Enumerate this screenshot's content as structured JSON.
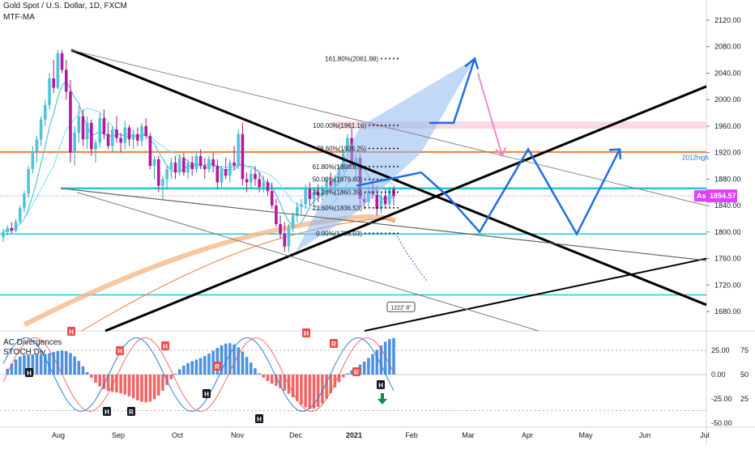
{
  "header": {
    "symbol_line": "Gold Spot / U.S. Dollar, 1D, FXCM",
    "indicator": "MTF-MA"
  },
  "sub_panel": {
    "indicator1": "AC Divergences",
    "indicator2": "STOCH Div",
    "right_ticks": [
      "25.00",
      "0.00",
      "-25.00",
      "-50.00"
    ],
    "right_ticks_b": [
      "75",
      "50",
      "25"
    ],
    "divergence_labels": [
      "H",
      "H",
      "H",
      "H",
      "R",
      "H",
      "H",
      "R",
      "H",
      "H",
      "R",
      "R",
      "H"
    ]
  },
  "chart_data": {
    "type": "candlestick",
    "price_axis": {
      "ylim": [
        1650,
        2140
      ],
      "ticks": [
        "2120.00",
        "2080.00",
        "2040.00",
        "2000.00",
        "1960.00",
        "1920.00",
        "1880.00",
        "1840.00",
        "1800.00",
        "1760.00",
        "1720.00",
        "1680.00"
      ]
    },
    "time_axis": {
      "labels": [
        "Aug",
        "Sep",
        "Oct",
        "Nov",
        "Dec",
        "2021",
        "Feb",
        "Mar",
        "Apr",
        "May",
        "Jun",
        "Jul"
      ]
    },
    "last_price": {
      "label": "Ask",
      "value": "1854.57"
    },
    "fib_levels": [
      {
        "ratio": "161.80%",
        "price": 2061.98,
        "label": "161.80%(2061.98)"
      },
      {
        "ratio": "100.00%",
        "price": 1961.16,
        "label": "100.00%(1961.16)"
      },
      {
        "ratio": "78.60%",
        "price": 1926.25,
        "label": "78.60%(1926.25)"
      },
      {
        "ratio": "61.80%",
        "price": 1898.87,
        "label": "61.80%(1898.87)"
      },
      {
        "ratio": "50.00%",
        "price": 1879.6,
        "label": "50.00%(1879.60)"
      },
      {
        "ratio": "38.20%",
        "price": 1860.35,
        "label": "38.20%(1860.35)"
      },
      {
        "ratio": "23.60%",
        "price": 1836.53,
        "label": "23.60%(1836.53)"
      },
      {
        "ratio": "0.00%",
        "price": 1798.03,
        "label": "0.00%(1798.03)"
      }
    ],
    "annotations": [
      "2012high",
      "1222' 8\""
    ],
    "horizontal_levels": [
      1921,
      1866,
      1797,
      1705
    ],
    "candles": [
      [
        1792,
        1805,
        1785,
        1800
      ],
      [
        1800,
        1810,
        1795,
        1806
      ],
      [
        1806,
        1815,
        1798,
        1802
      ],
      [
        1802,
        1820,
        1800,
        1816
      ],
      [
        1816,
        1840,
        1812,
        1836
      ],
      [
        1836,
        1862,
        1830,
        1858
      ],
      [
        1858,
        1900,
        1852,
        1895
      ],
      [
        1895,
        1930,
        1888,
        1922
      ],
      [
        1922,
        1945,
        1905,
        1940
      ],
      [
        1940,
        1975,
        1930,
        1970
      ],
      [
        1970,
        2000,
        1960,
        1992
      ],
      [
        1992,
        2040,
        1985,
        2032
      ],
      [
        2032,
        2060,
        2010,
        2018
      ],
      [
        2018,
        2075,
        2015,
        2070
      ],
      [
        2070,
        2075,
        2040,
        2045
      ],
      [
        2045,
        2060,
        2000,
        2012
      ],
      [
        2012,
        2030,
        1905,
        1920
      ],
      [
        1920,
        1960,
        1900,
        1950
      ],
      [
        1950,
        1990,
        1935,
        1975
      ],
      [
        1975,
        1985,
        1930,
        1940
      ],
      [
        1940,
        1975,
        1925,
        1965
      ],
      [
        1965,
        1970,
        1915,
        1925
      ],
      [
        1925,
        1940,
        1905,
        1935
      ],
      [
        1935,
        1980,
        1928,
        1972
      ],
      [
        1972,
        1985,
        1940,
        1948
      ],
      [
        1948,
        1965,
        1925,
        1930
      ],
      [
        1930,
        1960,
        1922,
        1955
      ],
      [
        1955,
        1975,
        1935,
        1942
      ],
      [
        1942,
        1950,
        1920,
        1935
      ],
      [
        1935,
        1968,
        1925,
        1958
      ],
      [
        1958,
        1962,
        1930,
        1940
      ],
      [
        1940,
        1955,
        1925,
        1948
      ],
      [
        1948,
        1958,
        1930,
        1938
      ],
      [
        1938,
        1965,
        1930,
        1960
      ],
      [
        1960,
        1972,
        1940,
        1945
      ],
      [
        1945,
        1950,
        1895,
        1900
      ],
      [
        1900,
        1915,
        1880,
        1910
      ],
      [
        1910,
        1915,
        1860,
        1870
      ],
      [
        1870,
        1885,
        1850,
        1880
      ],
      [
        1880,
        1900,
        1865,
        1895
      ],
      [
        1895,
        1912,
        1880,
        1905
      ],
      [
        1905,
        1915,
        1880,
        1890
      ],
      [
        1890,
        1918,
        1885,
        1912
      ],
      [
        1912,
        1920,
        1885,
        1890
      ],
      [
        1890,
        1910,
        1880,
        1905
      ],
      [
        1905,
        1915,
        1885,
        1895
      ],
      [
        1895,
        1920,
        1890,
        1915
      ],
      [
        1915,
        1925,
        1895,
        1900
      ],
      [
        1900,
        1912,
        1880,
        1895
      ],
      [
        1895,
        1915,
        1890,
        1910
      ],
      [
        1910,
        1920,
        1890,
        1900
      ],
      [
        1900,
        1910,
        1865,
        1875
      ],
      [
        1875,
        1900,
        1868,
        1895
      ],
      [
        1895,
        1912,
        1880,
        1885
      ],
      [
        1885,
        1910,
        1875,
        1905
      ],
      [
        1905,
        1930,
        1895,
        1900
      ],
      [
        1900,
        1955,
        1895,
        1948
      ],
      [
        1948,
        1965,
        1870,
        1880
      ],
      [
        1880,
        1890,
        1860,
        1875
      ],
      [
        1875,
        1895,
        1865,
        1888
      ],
      [
        1888,
        1900,
        1870,
        1880
      ],
      [
        1880,
        1890,
        1860,
        1868
      ],
      [
        1868,
        1885,
        1860,
        1875
      ],
      [
        1875,
        1880,
        1855,
        1862
      ],
      [
        1862,
        1875,
        1835,
        1840
      ],
      [
        1840,
        1850,
        1808,
        1812
      ],
      [
        1812,
        1825,
        1790,
        1798
      ],
      [
        1798,
        1815,
        1770,
        1778
      ],
      [
        1778,
        1812,
        1770,
        1806
      ],
      [
        1806,
        1830,
        1800,
        1825
      ],
      [
        1825,
        1845,
        1815,
        1838
      ],
      [
        1838,
        1850,
        1825,
        1842
      ],
      [
        1842,
        1872,
        1835,
        1865
      ],
      [
        1865,
        1875,
        1840,
        1850
      ],
      [
        1850,
        1868,
        1838,
        1860
      ],
      [
        1860,
        1872,
        1845,
        1855
      ],
      [
        1855,
        1870,
        1848,
        1865
      ],
      [
        1865,
        1882,
        1852,
        1877
      ],
      [
        1877,
        1890,
        1862,
        1870
      ],
      [
        1870,
        1885,
        1855,
        1880
      ],
      [
        1880,
        1900,
        1872,
        1895
      ],
      [
        1895,
        1925,
        1890,
        1920
      ],
      [
        1920,
        1948,
        1912,
        1942
      ],
      [
        1942,
        1958,
        1895,
        1900
      ],
      [
        1900,
        1918,
        1882,
        1912
      ],
      [
        1912,
        1918,
        1840,
        1850
      ],
      [
        1850,
        1860,
        1835,
        1845
      ],
      [
        1845,
        1870,
        1838,
        1862
      ],
      [
        1862,
        1878,
        1850,
        1856
      ],
      [
        1856,
        1870,
        1825,
        1835
      ],
      [
        1835,
        1862,
        1828,
        1855
      ],
      [
        1855,
        1865,
        1835,
        1842
      ],
      [
        1842,
        1868,
        1838,
        1865
      ],
      [
        1865,
        1870,
        1840,
        1854
      ]
    ]
  }
}
